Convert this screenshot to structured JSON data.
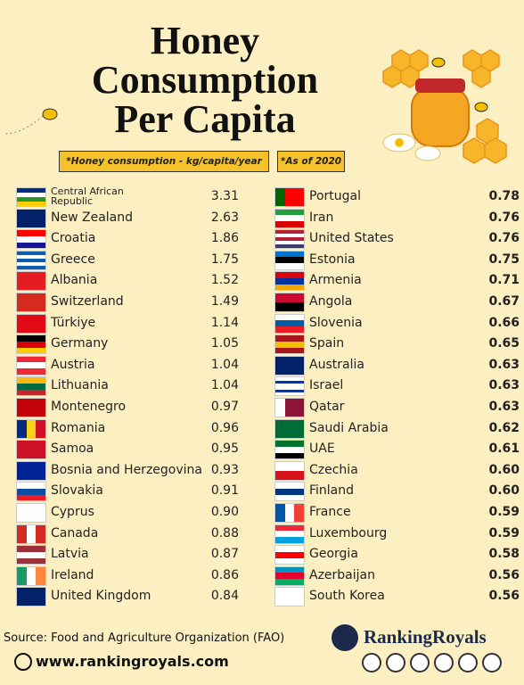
{
  "header": {
    "title_lines": [
      "Honey",
      "Consumption",
      "Per Capita"
    ],
    "notes": [
      "*Honey consumption - kg/capita/year",
      "*As of 2020"
    ]
  },
  "left_list": [
    {
      "country": "Central African Republic",
      "value": "3.31"
    },
    {
      "country": "New Zealand",
      "value": "2.63"
    },
    {
      "country": "Croatia",
      "value": "1.86"
    },
    {
      "country": "Greece",
      "value": "1.75"
    },
    {
      "country": "Albania",
      "value": "1.52"
    },
    {
      "country": "Switzerland",
      "value": "1.49"
    },
    {
      "country": "Türkiye",
      "value": "1.14"
    },
    {
      "country": "Germany",
      "value": "1.05"
    },
    {
      "country": "Austria",
      "value": "1.04"
    },
    {
      "country": "Lithuania",
      "value": "1.04"
    },
    {
      "country": "Montenegro",
      "value": "0.97"
    },
    {
      "country": "Romania",
      "value": "0.96"
    },
    {
      "country": "Samoa",
      "value": "0.95"
    },
    {
      "country": "Bosnia and Herzegovina",
      "value": "0.93"
    },
    {
      "country": "Slovakia",
      "value": "0.91"
    },
    {
      "country": "Cyprus",
      "value": "0.90"
    },
    {
      "country": "Canada",
      "value": "0.88"
    },
    {
      "country": "Latvia",
      "value": "0.87"
    },
    {
      "country": "Ireland",
      "value": "0.86"
    },
    {
      "country": "United Kingdom",
      "value": "0.84"
    }
  ],
  "right_list": [
    {
      "country": "Portugal",
      "value": "0.78"
    },
    {
      "country": "Iran",
      "value": "0.76"
    },
    {
      "country": "United States",
      "value": "0.76"
    },
    {
      "country": "Estonia",
      "value": "0.75"
    },
    {
      "country": "Armenia",
      "value": "0.71"
    },
    {
      "country": "Angola",
      "value": "0.67"
    },
    {
      "country": "Slovenia",
      "value": "0.66"
    },
    {
      "country": "Spain",
      "value": "0.65"
    },
    {
      "country": "Australia",
      "value": "0.63"
    },
    {
      "country": "Israel",
      "value": "0.63"
    },
    {
      "country": "Qatar",
      "value": "0.63"
    },
    {
      "country": "Saudi Arabia",
      "value": "0.62"
    },
    {
      "country": "UAE",
      "value": "0.61"
    },
    {
      "country": "Czechia",
      "value": "0.60"
    },
    {
      "country": "Finland",
      "value": "0.60"
    },
    {
      "country": "France",
      "value": "0.59"
    },
    {
      "country": "Luxembourg",
      "value": "0.59"
    },
    {
      "country": "Georgia",
      "value": "0.58"
    },
    {
      "country": "Azerbaijan",
      "value": "0.56"
    },
    {
      "country": "South Korea",
      "value": "0.56"
    }
  ],
  "footer": {
    "source": "Source: Food and Agriculture Organization (FAO)",
    "website": "www.rankingroyals.com",
    "brand": "RankingRoyals"
  }
}
